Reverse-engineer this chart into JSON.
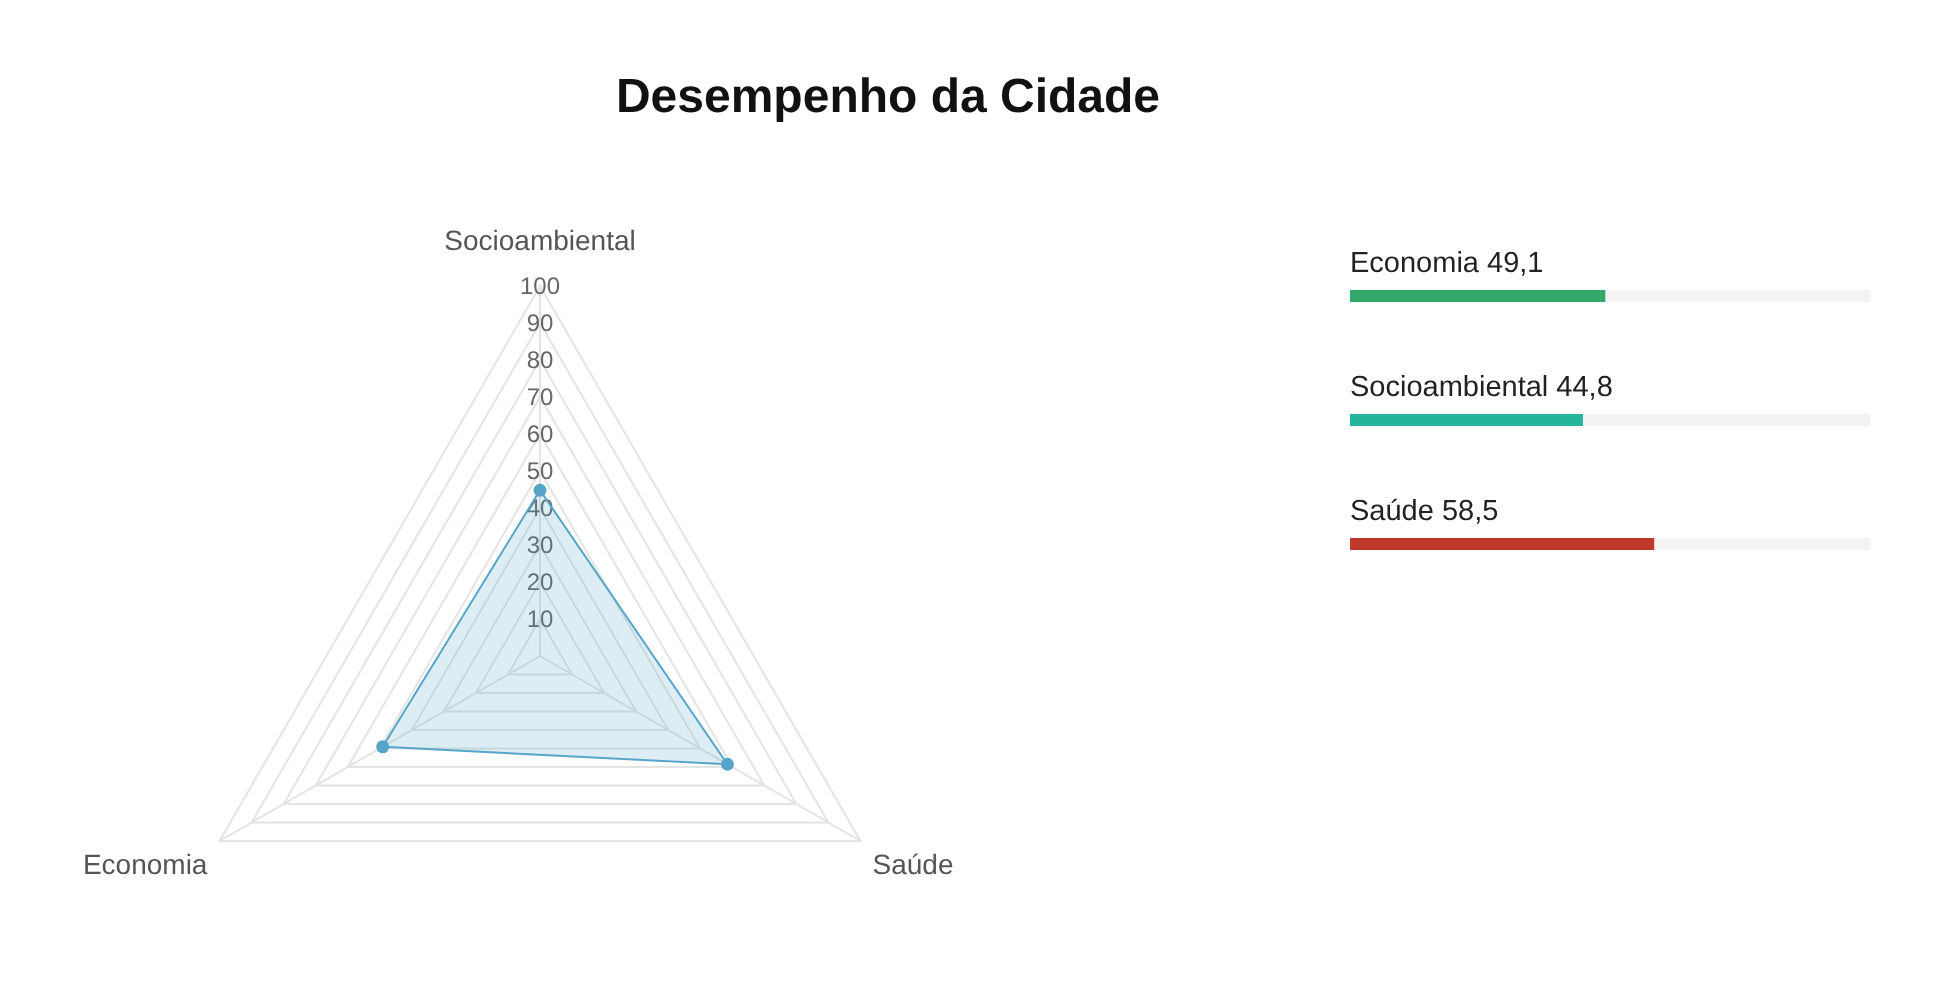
{
  "chart_data": [
    {
      "type": "radar",
      "title": "Desempenho da Cidade",
      "categories": [
        "Socioambiental",
        "Saúde",
        "Economia"
      ],
      "series": [
        {
          "color": "#56a5c9",
          "values": [
            44.8,
            58.5,
            49.1
          ]
        }
      ],
      "ylim": [
        0,
        100
      ],
      "yticks": [
        10,
        20,
        30,
        40,
        50,
        60,
        70,
        80,
        90,
        100
      ],
      "grid": true,
      "marker": "circle"
    },
    {
      "type": "bar",
      "orientation": "horizontal",
      "categories": [
        "Economia",
        "Socioambiental",
        "Saúde"
      ],
      "values": [
        49.1,
        44.8,
        58.5
      ],
      "colors": [
        "#33a96b",
        "#24b59a",
        "#c0392b"
      ],
      "value_labels": [
        "49,1",
        "44,8",
        "58,5"
      ],
      "xlim": [
        0,
        100
      ]
    }
  ]
}
